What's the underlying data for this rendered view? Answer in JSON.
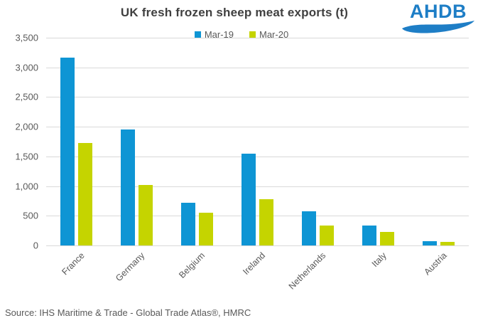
{
  "header": {
    "title": "UK fresh frozen sheep meat exports (t)",
    "logo_text": "AHDB"
  },
  "footer": {
    "source": "Source: IHS Maritime & Trade - Global Trade Atlas®, HMRC"
  },
  "colors": {
    "series_mar19": "#0e95d4",
    "series_mar20": "#c5d400",
    "title_text": "#404040",
    "axis_text": "#595959",
    "gridline": "#d9d9d9",
    "logo_blue": "#1e7ec6"
  },
  "chart_data": {
    "type": "bar",
    "title": "UK fresh frozen sheep meat exports (t)",
    "categories": [
      "France",
      "Germany",
      "Belgium",
      "Ireland",
      "Netherlands",
      "Italy",
      "Austria"
    ],
    "series": [
      {
        "name": "Mar-19",
        "color": "#0e95d4",
        "values": [
          3160,
          1950,
          715,
          1550,
          570,
          330,
          75
        ]
      },
      {
        "name": "Mar-20",
        "color": "#c5d400",
        "values": [
          1730,
          1020,
          555,
          775,
          335,
          225,
          60
        ]
      }
    ],
    "xlabel": "",
    "ylabel": "",
    "ylim": [
      0,
      3500
    ],
    "ytick_step": 500,
    "ytick_labels": [
      "0",
      "500",
      "1,000",
      "1,500",
      "2,000",
      "2,500",
      "3,000",
      "3,500"
    ],
    "grid": true,
    "legend_position": "top-center"
  }
}
